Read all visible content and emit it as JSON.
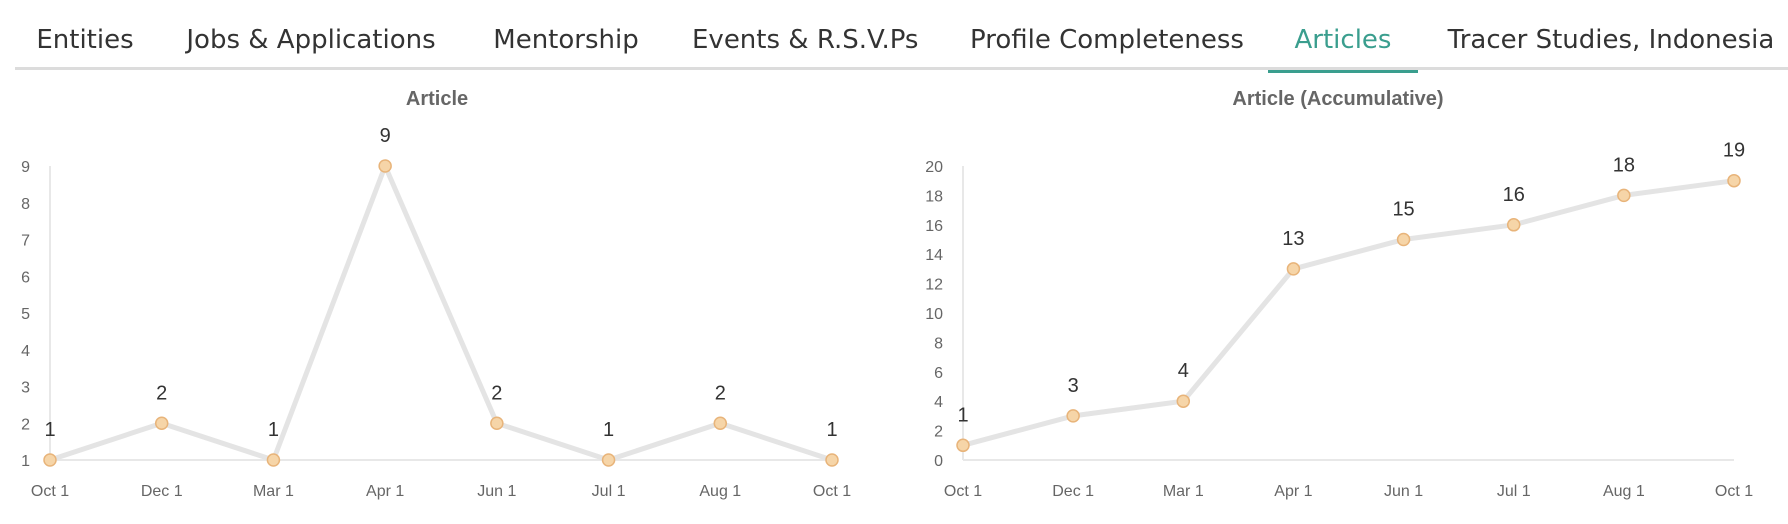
{
  "tabs": [
    {
      "label": "Entities",
      "active": false
    },
    {
      "label": "Jobs & Applications",
      "active": false
    },
    {
      "label": "Mentorship",
      "active": false
    },
    {
      "label": "Events & R.S.V.Ps",
      "active": false
    },
    {
      "label": "Profile Completeness",
      "active": false
    },
    {
      "label": "Articles",
      "active": true
    },
    {
      "label": "Tracer Studies, Indonesia",
      "active": false
    }
  ],
  "colors": {
    "accent": "#3a9e8e",
    "line": "#e4e4e4",
    "marker_fill": "#f6d5a8",
    "marker_stroke": "#e8b47a"
  },
  "chart_data": [
    {
      "type": "line",
      "title": "Article",
      "categories": [
        "Oct 1",
        "Dec 1",
        "Mar 1",
        "Apr 1",
        "Jun 1",
        "Jul 1",
        "Aug 1",
        "Oct 1"
      ],
      "values": [
        1,
        2,
        1,
        9,
        2,
        1,
        2,
        1
      ],
      "data_labels": [
        "1",
        "2",
        "1",
        "9",
        "2",
        "1",
        "2",
        "1"
      ],
      "y_ticks": [
        "1",
        "2",
        "3",
        "4",
        "5",
        "6",
        "7",
        "8",
        "9"
      ],
      "ylim": [
        1,
        9
      ],
      "grid": false,
      "legend": "none"
    },
    {
      "type": "line",
      "title": "Article (Accumulative)",
      "categories": [
        "Oct 1",
        "Dec 1",
        "Mar 1",
        "Apr 1",
        "Jun 1",
        "Jul 1",
        "Aug 1",
        "Oct 1"
      ],
      "values": [
        1,
        3,
        4,
        13,
        15,
        16,
        18,
        19
      ],
      "data_labels": [
        "1",
        "3",
        "4",
        "13",
        "15",
        "16",
        "18",
        "19"
      ],
      "y_ticks": [
        "0",
        "2",
        "4",
        "6",
        "8",
        "10",
        "12",
        "14",
        "16",
        "18",
        "20"
      ],
      "ylim": [
        0,
        20
      ],
      "grid": false,
      "legend": "none"
    }
  ]
}
